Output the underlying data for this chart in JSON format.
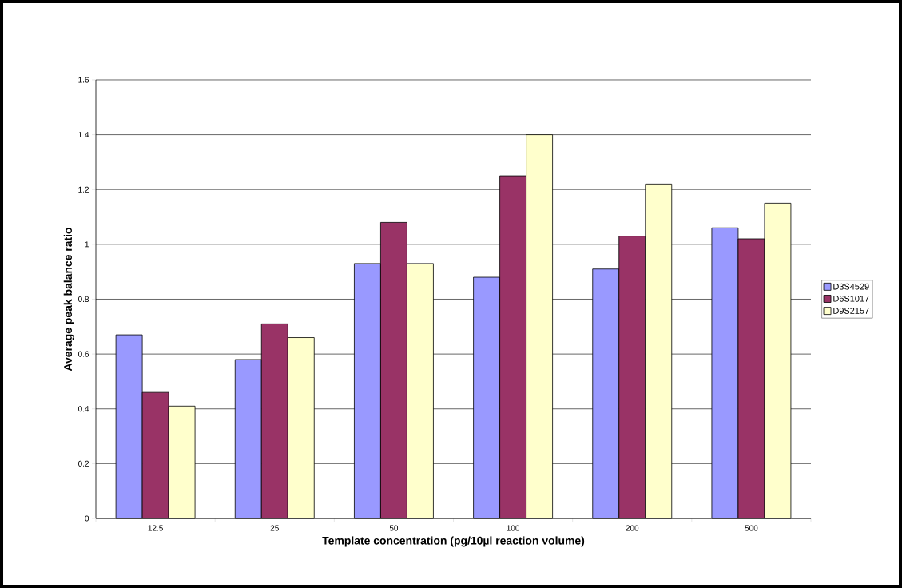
{
  "chart_data": {
    "type": "bar",
    "xlabel": "Template concentration (pg/10µl reaction volume)",
    "ylabel": "Average peak balance ratio",
    "categories": [
      "12.5",
      "25",
      "50",
      "100",
      "200",
      "500"
    ],
    "series": [
      {
        "name": "D3S4529",
        "color": "#9999ff",
        "values": [
          0.67,
          0.58,
          0.93,
          0.88,
          0.91,
          1.06
        ]
      },
      {
        "name": "D6S1017",
        "color": "#993366",
        "values": [
          0.46,
          0.71,
          1.08,
          1.25,
          1.03,
          1.02
        ]
      },
      {
        "name": "D9S2157",
        "color": "#ffffcc",
        "values": [
          0.41,
          0.66,
          0.93,
          1.4,
          1.22,
          1.15
        ]
      }
    ],
    "ylim": [
      0,
      1.6
    ],
    "yticks": [
      0,
      0.2,
      0.4,
      0.6,
      0.8,
      1,
      1.2,
      1.4,
      1.6
    ],
    "grid": "y",
    "legend": "right"
  }
}
